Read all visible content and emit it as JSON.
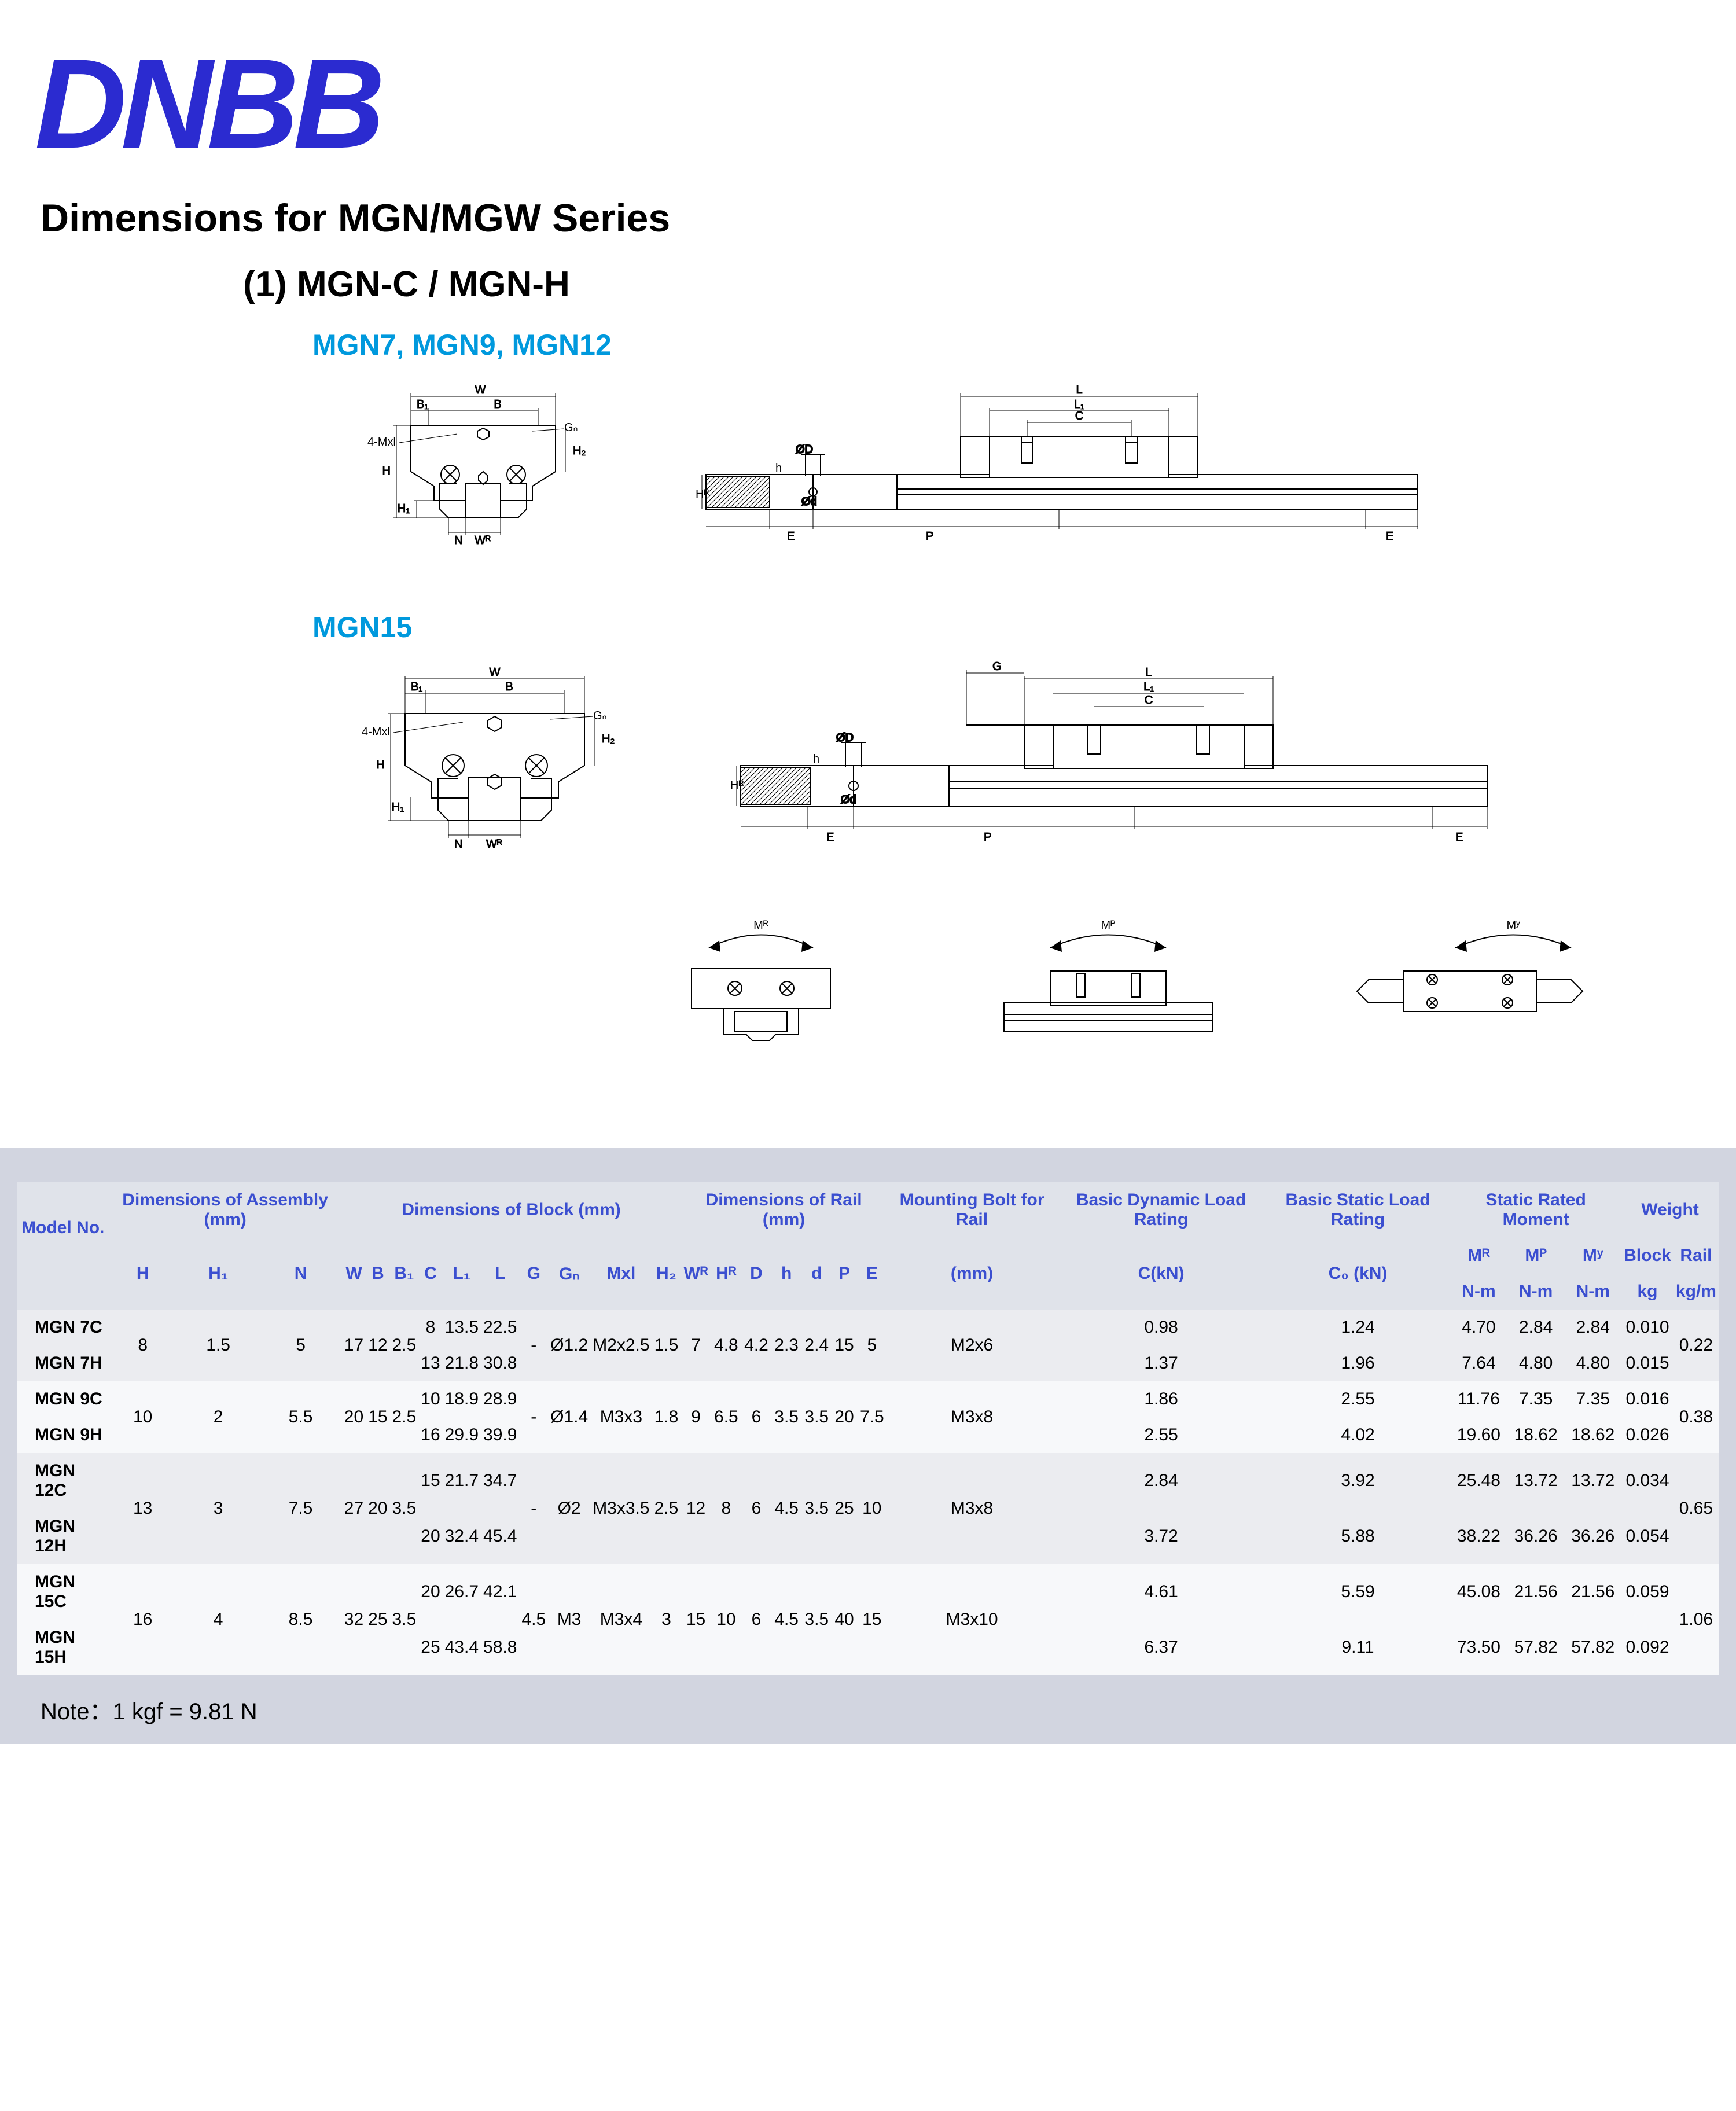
{
  "logo": "DNBB",
  "title1": "Dimensions for  MGN/MGW Series",
  "title2": "(1) MGN-C / MGN-H",
  "sub1": "MGN7, MGN9, MGN12",
  "sub2": "MGN15",
  "moment_labels": [
    "M_R",
    "M_P",
    "M_Y"
  ],
  "note": "Note：1 kgf = 9.81 N",
  "diagram_labels": {
    "block_labels": [
      "W",
      "B",
      "B₁",
      "Gₙ",
      "4-Mxl",
      "H",
      "H₁",
      "N",
      "Wᴿ",
      "H₂"
    ],
    "rail_labels": [
      "L",
      "L₁",
      "C",
      "ØD",
      "Ød",
      "E",
      "P",
      "Hᴿ",
      "h",
      "G"
    ]
  },
  "table": {
    "group_headers": [
      "Model No.",
      "Dimensions of Assembly (mm)",
      "Dimensions of Block (mm)",
      "Dimensions of Rail (mm)",
      "Mounting Bolt for Rail",
      "Basic Dynamic Load Rating",
      "Basic Static Load Rating",
      "Static Rated Moment",
      "Weight"
    ],
    "col_headers": [
      "",
      "H",
      "H₁",
      "N",
      "W",
      "B",
      "B₁",
      "C",
      "L₁",
      "L",
      "G",
      "Gₙ",
      "Mxl",
      "H₂",
      "Wᴿ",
      "Hᴿ",
      "D",
      "h",
      "d",
      "P",
      "E",
      "(mm)",
      "C(kN)",
      "C₀ (kN)",
      "Mᴿ",
      "Mᴾ",
      "Mʸ",
      "Block",
      "Rail"
    ],
    "unit_row": [
      "",
      "",
      "",
      "",
      "",
      "",
      "",
      "",
      "",
      "",
      "",
      "",
      "",
      "",
      "",
      "",
      "",
      "",
      "",
      "",
      "",
      "",
      "",
      "",
      "N-m",
      "N-m",
      "N-m",
      "kg",
      "kg/m"
    ],
    "rows": [
      {
        "model": "MGN 7C",
        "h": "8",
        "h1": "1.5",
        "n": "5",
        "w": "17",
        "b": "12",
        "b1": "2.5",
        "c": "8",
        "l1": "13.5",
        "l": "22.5",
        "g": "-",
        "gn": "Ø1.2",
        "mxl": "M2x2.5",
        "h2": "1.5",
        "wr": "7",
        "hr": "4.8",
        "d": "4.2",
        "hh": "2.3",
        "dd": "2.4",
        "p": "15",
        "e": "5",
        "bolt": "M2x6",
        "ckn": "0.98",
        "c0kn": "1.24",
        "mr": "4.70",
        "mp": "2.84",
        "my": "2.84",
        "blk": "0.010",
        "rail": "0.22",
        "span": 2
      },
      {
        "model": "MGN 7H",
        "c": "13",
        "l1": "21.8",
        "l": "30.8",
        "ckn": "1.37",
        "c0kn": "1.96",
        "mr": "7.64",
        "mp": "4.80",
        "my": "4.80",
        "blk": "0.015"
      },
      {
        "model": "MGN 9C",
        "h": "10",
        "h1": "2",
        "n": "5.5",
        "w": "20",
        "b": "15",
        "b1": "2.5",
        "c": "10",
        "l1": "18.9",
        "l": "28.9",
        "g": "-",
        "gn": "Ø1.4",
        "mxl": "M3x3",
        "h2": "1.8",
        "wr": "9",
        "hr": "6.5",
        "d": "6",
        "hh": "3.5",
        "dd": "3.5",
        "p": "20",
        "e": "7.5",
        "bolt": "M3x8",
        "ckn": "1.86",
        "c0kn": "2.55",
        "mr": "11.76",
        "mp": "7.35",
        "my": "7.35",
        "blk": "0.016",
        "rail": "0.38",
        "span": 2
      },
      {
        "model": "MGN 9H",
        "c": "16",
        "l1": "29.9",
        "l": "39.9",
        "ckn": "2.55",
        "c0kn": "4.02",
        "mr": "19.60",
        "mp": "18.62",
        "my": "18.62",
        "blk": "0.026"
      },
      {
        "model": "MGN 12C",
        "h": "13",
        "h1": "3",
        "n": "7.5",
        "w": "27",
        "b": "20",
        "b1": "3.5",
        "c": "15",
        "l1": "21.7",
        "l": "34.7",
        "g": "-",
        "gn": "Ø2",
        "mxl": "M3x3.5",
        "h2": "2.5",
        "wr": "12",
        "hr": "8",
        "d": "6",
        "hh": "4.5",
        "dd": "3.5",
        "p": "25",
        "e": "10",
        "bolt": "M3x8",
        "ckn": "2.84",
        "c0kn": "3.92",
        "mr": "25.48",
        "mp": "13.72",
        "my": "13.72",
        "blk": "0.034",
        "rail": "0.65",
        "span": 2
      },
      {
        "model": "MGN 12H",
        "c": "20",
        "l1": "32.4",
        "l": "45.4",
        "ckn": "3.72",
        "c0kn": "5.88",
        "mr": "38.22",
        "mp": "36.26",
        "my": "36.26",
        "blk": "0.054"
      },
      {
        "model": "MGN 15C",
        "h": "16",
        "h1": "4",
        "n": "8.5",
        "w": "32",
        "b": "25",
        "b1": "3.5",
        "c": "20",
        "l1": "26.7",
        "l": "42.1",
        "g": "4.5",
        "gn": "M3",
        "mxl": "M3x4",
        "h2": "3",
        "wr": "15",
        "hr": "10",
        "d": "6",
        "hh": "4.5",
        "dd": "3.5",
        "p": "40",
        "e": "15",
        "bolt": "M3x10",
        "ckn": "4.61",
        "c0kn": "5.59",
        "mr": "45.08",
        "mp": "21.56",
        "my": "21.56",
        "blk": "0.059",
        "rail": "1.06",
        "span": 2
      },
      {
        "model": "MGN 15H",
        "c": "25",
        "l1": "43.4",
        "l": "58.8",
        "ckn": "6.37",
        "c0kn": "9.11",
        "mr": "73.50",
        "mp": "57.82",
        "my": "57.82",
        "blk": "0.092"
      }
    ]
  },
  "colors": {
    "brand": "#2b2bd0",
    "accent": "#0099dd",
    "table_bg": "#d2d5e0",
    "row_alt1": "#ebecf0",
    "row_alt2": "#f7f8fa",
    "header_text": "#3b4fd0"
  }
}
